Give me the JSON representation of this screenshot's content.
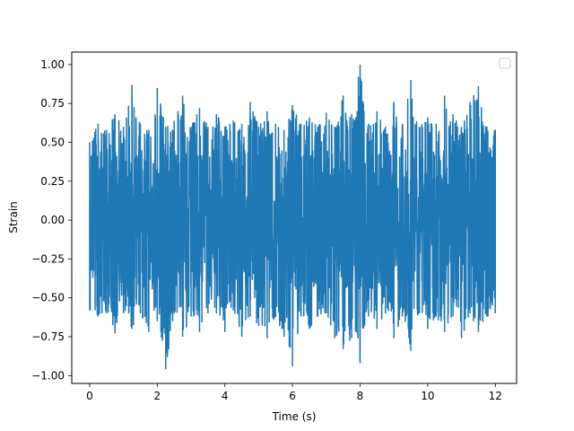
{
  "chart_data": {
    "type": "line",
    "xlabel": "Time (s)",
    "ylabel": "Strain",
    "xlim": [
      -0.53,
      12.63
    ],
    "ylim": [
      -1.05,
      1.08
    ],
    "x_ticks": [
      0,
      2,
      4,
      6,
      8,
      10,
      12
    ],
    "x_tick_labels": [
      "0",
      "2",
      "4",
      "6",
      "8",
      "10",
      "12"
    ],
    "y_ticks": [
      -1.0,
      -0.75,
      -0.5,
      -0.25,
      0.0,
      0.25,
      0.5,
      0.75,
      1.0
    ],
    "y_tick_labels": [
      "−1.00",
      "−0.75",
      "−0.50",
      "−0.25",
      "0.00",
      "0.25",
      "0.50",
      "0.75",
      "1.00"
    ],
    "legend": "top-right",
    "grid": false,
    "series_color": "#1f77b4",
    "series": [
      {
        "x": [
          0.0,
          0.25,
          0.5,
          0.75,
          1.0,
          1.25,
          1.5,
          1.75,
          2.0,
          2.25,
          2.5,
          2.75,
          3.0,
          3.25,
          3.5,
          3.75,
          4.0,
          4.25,
          4.5,
          4.75,
          5.0,
          5.25,
          5.5,
          5.75,
          6.0,
          6.25,
          6.5,
          6.75,
          7.0,
          7.25,
          7.5,
          7.75,
          8.0,
          8.25,
          8.5,
          8.75,
          9.0,
          9.25,
          9.5,
          9.75,
          10.0,
          10.25,
          10.5,
          10.75,
          11.0,
          11.25,
          11.5,
          11.75,
          12.0
        ],
        "max": [
          0.5,
          0.62,
          0.58,
          0.68,
          0.6,
          0.87,
          0.62,
          0.58,
          0.85,
          0.6,
          0.64,
          0.8,
          0.6,
          0.72,
          0.6,
          0.68,
          0.6,
          0.64,
          0.62,
          0.76,
          0.6,
          0.7,
          0.62,
          0.58,
          0.74,
          0.62,
          0.66,
          0.6,
          0.69,
          0.6,
          0.8,
          0.68,
          1.0,
          0.62,
          0.7,
          0.6,
          0.76,
          0.62,
          0.9,
          0.6,
          0.66,
          0.62,
          0.8,
          0.68,
          0.6,
          0.76,
          0.86,
          0.6,
          0.58
        ],
        "min": [
          -0.58,
          -0.62,
          -0.6,
          -0.73,
          -0.6,
          -0.7,
          -0.6,
          -0.72,
          -0.65,
          -0.96,
          -0.6,
          -0.75,
          -0.62,
          -0.72,
          -0.6,
          -0.6,
          -0.72,
          -0.58,
          -0.75,
          -0.62,
          -0.68,
          -0.76,
          -0.62,
          -0.75,
          -0.94,
          -0.62,
          -0.7,
          -0.62,
          -0.6,
          -0.76,
          -0.83,
          -0.76,
          -0.92,
          -0.62,
          -0.7,
          -0.6,
          -0.76,
          -0.62,
          -0.84,
          -0.6,
          -0.7,
          -0.62,
          -0.72,
          -0.62,
          -0.76,
          -0.6,
          -0.72,
          -0.62,
          -0.6
        ]
      }
    ]
  }
}
